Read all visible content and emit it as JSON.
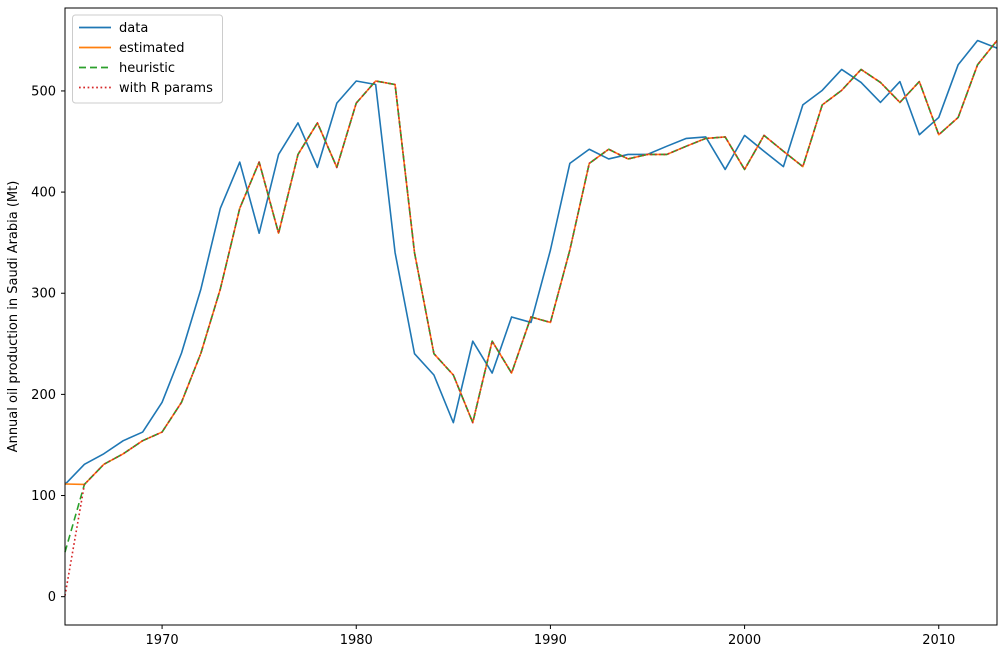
{
  "chart_data": {
    "type": "line",
    "title": "",
    "xlabel": "",
    "ylabel": "Annual oil production in Saudi Arabia (Mt)",
    "x_start_year": 1965,
    "x_step": 1,
    "xlim": [
      1965,
      2013
    ],
    "ylim": [
      -28,
      582
    ],
    "xticks": [
      1970,
      1980,
      1990,
      2000,
      2010
    ],
    "yticks": [
      0,
      100,
      200,
      300,
      400,
      500
    ],
    "grid": false,
    "plot_background": "#ffffff",
    "axis_color": "#000000",
    "legend": {
      "position": "upper-left",
      "border_color": "#cccccc",
      "background": "#ffffff"
    },
    "series": [
      {
        "name": "data",
        "color": "#1f77b4",
        "line_style": "solid",
        "values": [
          111.0091,
          130.8284,
          141.2871,
          154.2278,
          162.7409,
          192.1665,
          240.7997,
          304.2174,
          384.0046,
          429.6622,
          359.3169,
          437.2519,
          468.4008,
          424.4353,
          487.9794,
          509.8284,
          506.3473,
          340.1842,
          240.2589,
          219.1497,
          172.0747,
          252.59,
          221.0951,
          276.5219,
          271.148,
          342.6186,
          428.3558,
          442.3446,
          432.7851,
          437.2497,
          437.2492,
          445.3641,
          453.069,
          454.5331,
          422.3768,
          456.037,
          440.3866,
          425.1944,
          486.2052,
          500.5999,
          521.2334,
          508.3786,
          488.6839,
          509.2389,
          456.7211,
          473.8166,
          525.9509,
          549.8338,
          542.3405
        ]
      },
      {
        "name": "estimated",
        "color": "#ff7f0e",
        "line_style": "solid",
        "initial_level": 111.4,
        "values": [
          111.4,
          111.0091,
          130.8284,
          141.2871,
          154.2278,
          162.7409,
          192.1665,
          240.7997,
          304.2174,
          384.0046,
          429.6622,
          359.3169,
          437.2519,
          468.4008,
          424.4353,
          487.9794,
          509.8284,
          506.3473,
          340.1842,
          240.2589,
          219.1497,
          172.0747,
          252.59,
          221.0951,
          276.5219,
          271.148,
          342.6186,
          428.3558,
          442.3446,
          432.7851,
          437.2497,
          437.2492,
          445.3641,
          453.069,
          454.5331,
          422.3768,
          456.037,
          440.3866,
          425.1944,
          486.2052,
          500.5999,
          521.2334,
          508.3786,
          488.6839,
          509.2389,
          456.7211,
          473.8166,
          525.9509,
          549.8338
        ]
      },
      {
        "name": "heuristic",
        "color": "#2ca02c",
        "line_style": "dashed",
        "initial_level": 44.0,
        "values": [
          44.0,
          111.0091,
          130.8284,
          141.2871,
          154.2278,
          162.7409,
          192.1665,
          240.7997,
          304.2174,
          384.0046,
          429.6622,
          359.3169,
          437.2519,
          468.4008,
          424.4353,
          487.9794,
          509.8284,
          506.3473,
          340.1842,
          240.2589,
          219.1497,
          172.0747,
          252.59,
          221.0951,
          276.5219,
          271.148,
          342.6186,
          428.3558,
          442.3446,
          432.7851,
          437.2497,
          437.2492,
          445.3641,
          453.069,
          454.5331,
          422.3768,
          456.037,
          440.3866,
          425.1944,
          486.2052,
          500.5999,
          521.2334,
          508.3786,
          488.6839,
          509.2389,
          456.7211,
          473.8166,
          525.9509,
          549.8338
        ]
      },
      {
        "name": "with R params",
        "color": "#d62728",
        "line_style": "dotted",
        "initial_level": 1.0,
        "values": [
          1.0,
          111.0091,
          130.8284,
          141.2871,
          154.2278,
          162.7409,
          192.1665,
          240.7997,
          304.2174,
          384.0046,
          429.6622,
          359.3169,
          437.2519,
          468.4008,
          424.4353,
          487.9794,
          509.8284,
          506.3473,
          340.1842,
          240.2589,
          219.1497,
          172.0747,
          252.59,
          221.0951,
          276.5219,
          271.148,
          342.6186,
          428.3558,
          442.3446,
          432.7851,
          437.2497,
          437.2492,
          445.3641,
          453.069,
          454.5331,
          422.3768,
          456.037,
          440.3866,
          425.1944,
          486.2052,
          500.5999,
          521.2334,
          508.3786,
          488.6839,
          509.2389,
          456.7211,
          473.8166,
          525.9509,
          549.8338
        ]
      }
    ]
  }
}
